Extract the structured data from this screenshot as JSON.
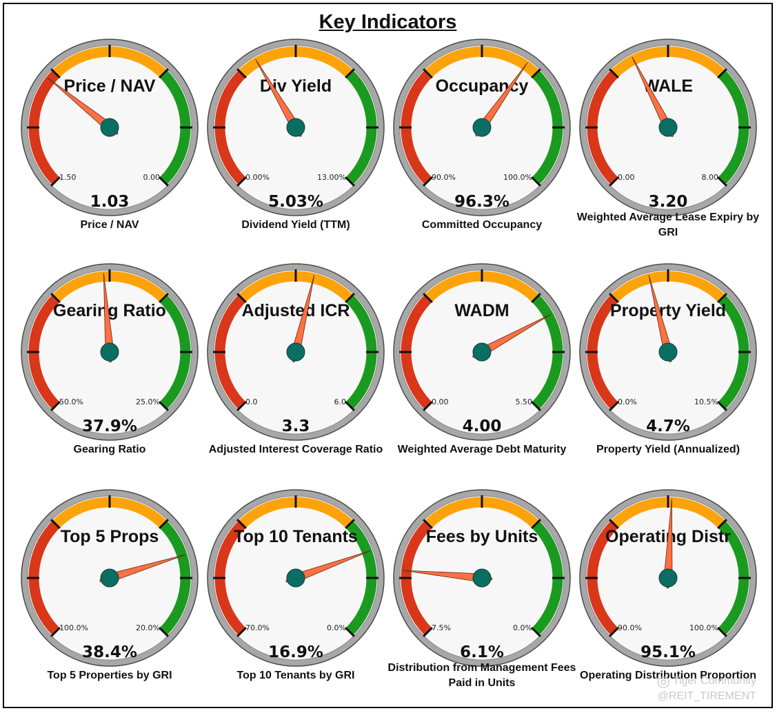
{
  "page": {
    "title": "Key Indicators"
  },
  "colors": {
    "red": "#d9371a",
    "orange": "#fca30c",
    "green": "#1b9a20",
    "needle": "#ff7043",
    "hub": "#0b6e62",
    "rim": "#9e9e9e",
    "face": "#f7f7f7"
  },
  "gauges": [
    {
      "title": "Price / NAV",
      "value": "1.03",
      "left_label": "1.50",
      "right_label": "0.00",
      "caption": "Price / NAV",
      "fraction": 0.31
    },
    {
      "title": "Div Yield",
      "value": "5.03%",
      "left_label": "0.00%",
      "right_label": "13.00%",
      "caption": "Dividend Yield (TTM)",
      "fraction": 0.387
    },
    {
      "title": "Occupancy",
      "value": "96.3%",
      "left_label": "90.0%",
      "right_label": "100.0%",
      "caption": "Committed Occupancy",
      "fraction": 0.63
    },
    {
      "title": "WALE",
      "value": "3.20",
      "left_label": "0.00",
      "right_label": "8.00",
      "caption": "Weighted Average Lease Expiry by GRI",
      "fraction": 0.4
    },
    {
      "title": "Gearing Ratio",
      "value": "37.9%",
      "left_label": "50.0%",
      "right_label": "25.0%",
      "caption": "Gearing Ratio",
      "fraction": 0.484
    },
    {
      "title": "Adjusted ICR",
      "value": "3.3",
      "left_label": "0.0",
      "right_label": "6.0",
      "caption": "Adjusted Interest Coverage Ratio",
      "fraction": 0.55
    },
    {
      "title": "WADM",
      "value": "4.00",
      "left_label": "0.00",
      "right_label": "5.50",
      "caption": "Weighted Average Debt Maturity",
      "fraction": 0.727
    },
    {
      "title": "Property Yield",
      "value": "4.7%",
      "left_label": "0.0%",
      "right_label": "10.5%",
      "caption": "Property Yield (Annualized)",
      "fraction": 0.448
    },
    {
      "title": "Top 5 Props",
      "value": "38.4%",
      "left_label": "100.0%",
      "right_label": "20.0%",
      "caption": "Top 5 Properties by GRI",
      "fraction": 0.77
    },
    {
      "title": "Top 10 Tenants",
      "value": "16.9%",
      "left_label": "70.0%",
      "right_label": "0.0%",
      "caption": "Top 10 Tenants by GRI",
      "fraction": 0.759
    },
    {
      "title": "Fees by Units",
      "value": "6.1%",
      "left_label": "7.5%",
      "right_label": "0.0%",
      "caption": "Distribution from Management Fees Paid in Units",
      "fraction": 0.187
    },
    {
      "title": "Operating Distr",
      "value": "95.1%",
      "left_label": "90.0%",
      "right_label": "100.0%",
      "caption": "Operating Distribution Proportion",
      "fraction": 0.51
    }
  ],
  "chart_data": {
    "type": "gauge",
    "title": "Key Indicators",
    "gauges": [
      {
        "name": "Price / NAV",
        "value": 1.03,
        "min_label": "1.50",
        "max_label": "0.00",
        "display": "1.03"
      },
      {
        "name": "Dividend Yield (TTM)",
        "value": 5.03,
        "min_label": "0.00%",
        "max_label": "13.00%",
        "display": "5.03%"
      },
      {
        "name": "Committed Occupancy",
        "value": 96.3,
        "min_label": "90.0%",
        "max_label": "100.0%",
        "display": "96.3%"
      },
      {
        "name": "Weighted Average Lease Expiry by GRI",
        "value": 3.2,
        "min_label": "0.00",
        "max_label": "8.00",
        "display": "3.20"
      },
      {
        "name": "Gearing Ratio",
        "value": 37.9,
        "min_label": "50.0%",
        "max_label": "25.0%",
        "display": "37.9%"
      },
      {
        "name": "Adjusted Interest Coverage Ratio",
        "value": 3.3,
        "min_label": "0.0",
        "max_label": "6.0",
        "display": "3.3"
      },
      {
        "name": "Weighted Average Debt Maturity",
        "value": 4.0,
        "min_label": "0.00",
        "max_label": "5.50",
        "display": "4.00"
      },
      {
        "name": "Property Yield (Annualized)",
        "value": 4.7,
        "min_label": "0.0%",
        "max_label": "10.5%",
        "display": "4.7%"
      },
      {
        "name": "Top 5 Properties by GRI",
        "value": 38.4,
        "min_label": "100.0%",
        "max_label": "20.0%",
        "display": "38.4%"
      },
      {
        "name": "Top 10 Tenants by GRI",
        "value": 16.9,
        "min_label": "70.0%",
        "max_label": "0.0%",
        "display": "16.9%"
      },
      {
        "name": "Distribution from Management Fees Paid in Units",
        "value": 6.1,
        "min_label": "7.5%",
        "max_label": "0.0%",
        "display": "6.1%"
      },
      {
        "name": "Operating Distribution Proportion",
        "value": 95.1,
        "min_label": "90.0%",
        "max_label": "100.0%",
        "display": "95.1%"
      }
    ]
  },
  "watermark": {
    "line1": "Tiger Community",
    "line2": "@REIT_TIREMENT"
  }
}
